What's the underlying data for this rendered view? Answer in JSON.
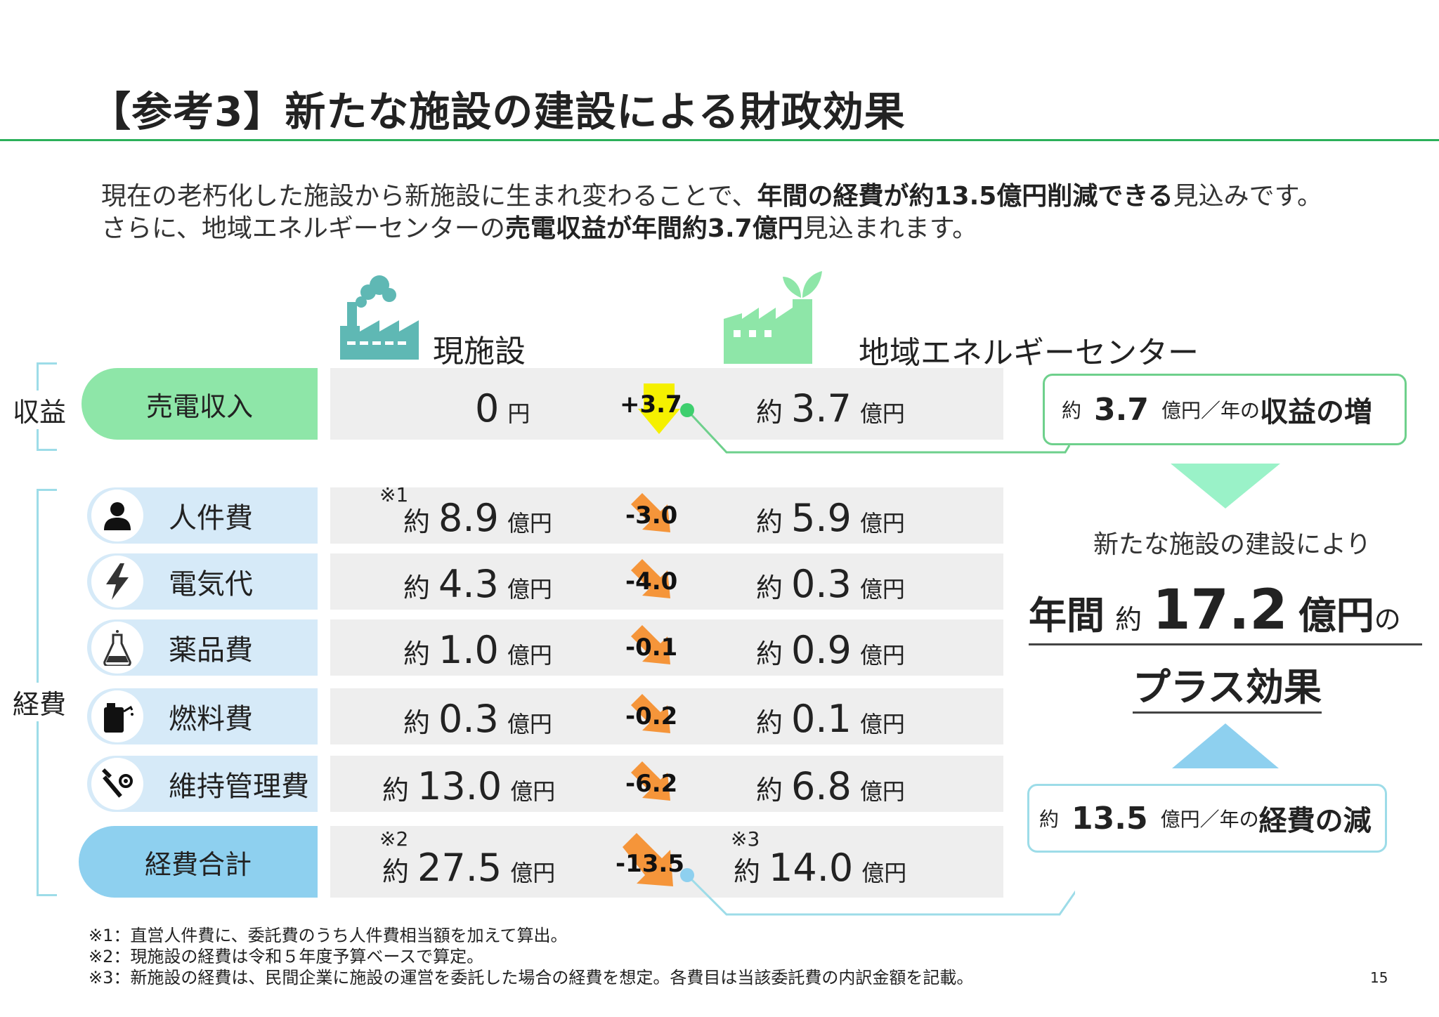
{
  "title": "【参考3】新たな施設の建設による財政効果",
  "lead": {
    "line1_a": "現在の老朽化した施設から新施設に生まれ変わることで、",
    "line1_b": "年間の経費が約13.5億円削減できる",
    "line1_c": "見込みです。",
    "line2_a": "さらに、地域エネルギーセンターの",
    "line2_b": "売電収益が年間約3.7億円",
    "line2_c": "見込まれます。"
  },
  "columns": {
    "current": "現施設",
    "new": "地域エネルギーセンター"
  },
  "groups": {
    "revenue": "収益",
    "expenses": "経費"
  },
  "revenue_row": {
    "label": "売電収入",
    "current_value": "0",
    "current_unit": "円",
    "delta": "+3.7",
    "new_prefix": "約",
    "new_value": "3.7",
    "new_unit": "億円"
  },
  "expense_rows": [
    {
      "label": "人件費",
      "icon": "person-icon",
      "note": "※1",
      "cur_prefix": "約",
      "cur": "8.9",
      "unit": "億円",
      "delta": "-3.0",
      "new_prefix": "約",
      "new": "5.9"
    },
    {
      "label": "電気代",
      "icon": "lightning-icon",
      "note": "",
      "cur_prefix": "約",
      "cur": "4.3",
      "unit": "億円",
      "delta": "-4.0",
      "new_prefix": "約",
      "new": "0.3"
    },
    {
      "label": "薬品費",
      "icon": "flask-icon",
      "note": "",
      "cur_prefix": "約",
      "cur": "1.0",
      "unit": "億円",
      "delta": "-0.1",
      "new_prefix": "約",
      "new": "0.9"
    },
    {
      "label": "燃料費",
      "icon": "fuel-can-icon",
      "note": "",
      "cur_prefix": "約",
      "cur": "0.3",
      "unit": "億円",
      "delta": "-0.2",
      "new_prefix": "約",
      "new": "0.1"
    },
    {
      "label": "維持管理費",
      "icon": "tools-icon",
      "note": "",
      "cur_prefix": "約",
      "cur": "13.0",
      "unit": "億円",
      "delta": "-6.2",
      "new_prefix": "約",
      "new": "6.8"
    }
  ],
  "total_row": {
    "label": "経費合計",
    "cur_note": "※2",
    "cur_prefix": "約",
    "cur": "27.5",
    "unit": "億円",
    "delta": "-13.5",
    "new_note": "※3",
    "new_prefix": "約",
    "new": "14.0"
  },
  "callout_revenue": {
    "prefix": "約",
    "value": "3.7",
    "unit": "億円／年の",
    "strong": "収益の増"
  },
  "callout_expense": {
    "prefix": "約",
    "value": "13.5",
    "unit": "億円／年の",
    "strong": "経費の減"
  },
  "summary": {
    "line1": "新たな施設の建設により",
    "year": "年間",
    "approx": "約",
    "value": "17.2",
    "unit": "億円",
    "no": "の",
    "line3": "プラス効果"
  },
  "footnotes": [
    "※1：直営人件費に、委託費のうち人件費相当額を加えて算出。",
    "※2：現施設の経費は令和５年度予算ベースで算定。",
    "※3：新施設の経費は、民間企業に施設の運営を委託した場合の経費を想定。各費目は当該委託費の内訳金額を記載。"
  ],
  "page_number": "15",
  "colors": {
    "green_accent": "#2bb05a",
    "revenue_green": "#8ee6a8",
    "expense_blue": "#8ed0ef",
    "arrow_orange": "#f5953a",
    "arrow_yellow": "#f5f000"
  }
}
